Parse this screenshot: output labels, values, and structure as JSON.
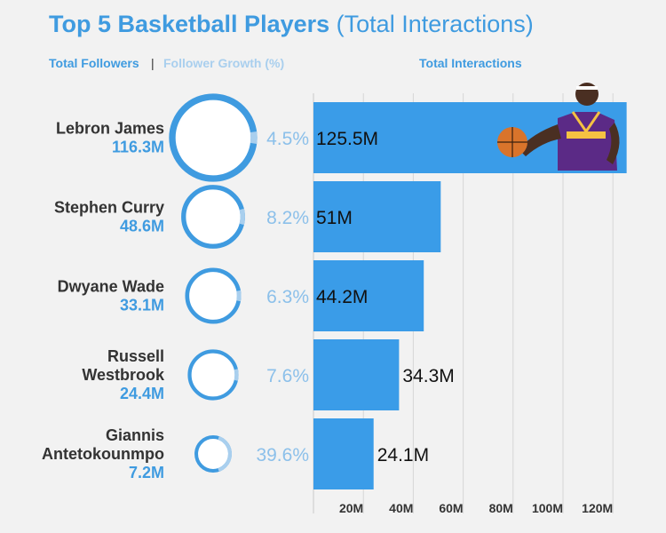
{
  "title": {
    "main": "Top 5 Basketball Players",
    "sub": "(Total Interactions)"
  },
  "legend": {
    "followers": "Total Followers",
    "separator": "|",
    "growth": "Follower Growth (%)",
    "interactions": "Total Interactions"
  },
  "colors": {
    "accent": "#3f9be0",
    "growth": "#a9cfee",
    "bar": "#3a9ce8",
    "background": "#f2f2f2"
  },
  "chart_data": {
    "type": "bar",
    "orientation": "horizontal",
    "categories": [
      "Lebron James",
      "Stephen Curry",
      "Dwyane Wade",
      "Russell Westbrook",
      "Giannis Antetokounmpo"
    ],
    "name_lines": [
      [
        "Lebron James"
      ],
      [
        "Stephen Curry"
      ],
      [
        "Dwyane Wade"
      ],
      [
        "Russell",
        "Westbrook"
      ],
      [
        "Giannis",
        "Antetokounmpo"
      ]
    ],
    "series": [
      {
        "name": "Total Interactions",
        "values": [
          125.5,
          51,
          44.2,
          34.3,
          24.1
        ],
        "labels": [
          "125.5M",
          "51M",
          "44.2M",
          "34.3M",
          "24.1M"
        ]
      },
      {
        "name": "Total Followers",
        "values": [
          116.3,
          48.6,
          33.1,
          24.4,
          7.2
        ],
        "labels": [
          "116.3M",
          "48.6M",
          "33.1M",
          "24.4M",
          "7.2M"
        ]
      },
      {
        "name": "Follower Growth (%)",
        "values": [
          4.5,
          8.2,
          6.3,
          7.6,
          39.6
        ],
        "labels": [
          "4.5%",
          "8.2%",
          "6.3%",
          "7.6%",
          "39.6%"
        ]
      }
    ],
    "xlim": [
      0,
      130
    ],
    "xticks": [
      20,
      40,
      60,
      80,
      100,
      120
    ],
    "xtick_labels": [
      "20M",
      "40M",
      "60M",
      "80M",
      "100M",
      "120M"
    ],
    "grid": true,
    "image": "lebron-james-photo"
  }
}
